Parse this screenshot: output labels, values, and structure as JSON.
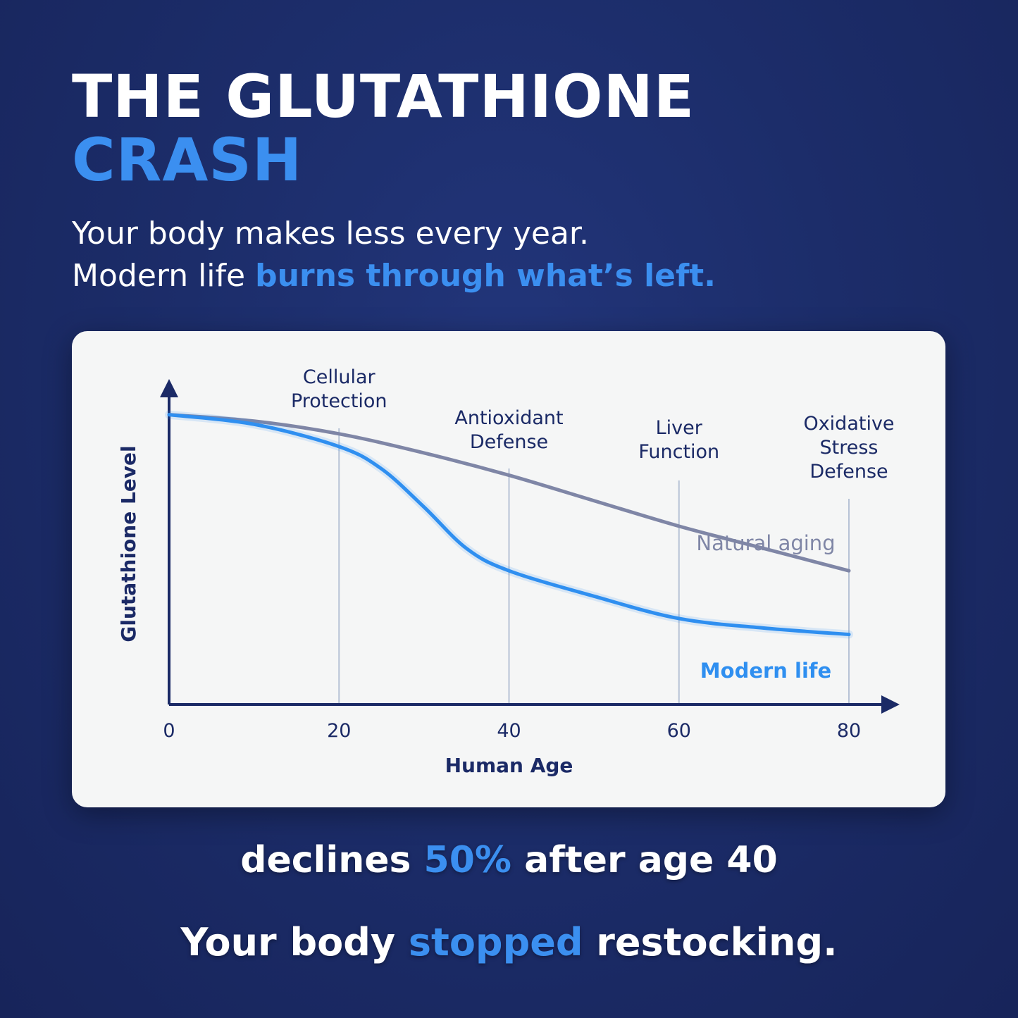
{
  "header": {
    "title_line1": "THE GLUTATHIONE",
    "title_line2": "CRASH",
    "subtitle_line1": "Your body makes less every year.",
    "subtitle_line2_plain": "Modern life ",
    "subtitle_line2_accent": "burns through what’s left."
  },
  "colors": {
    "accent": "#3b8ff0",
    "natural_aging_line": "#7f86a6",
    "modern_life_line": "#2f8ff0",
    "axis": "#1b2a66",
    "marker_line": "#b7c3d6"
  },
  "chart_data": {
    "type": "line",
    "xlabel": "Human Age",
    "ylabel": "Glutathione Level",
    "xlim": [
      0,
      80
    ],
    "ylim": [
      0,
      100
    ],
    "x_ticks": [
      "0",
      "20",
      "40",
      "60",
      "80"
    ],
    "grid": false,
    "series": [
      {
        "name": "Natural aging",
        "x": [
          0,
          10,
          20,
          30,
          40,
          50,
          60,
          70,
          80
        ],
        "values": [
          91,
          89,
          85,
          79,
          72,
          64,
          56,
          49,
          42
        ]
      },
      {
        "name": "Modern life",
        "x": [
          0,
          10,
          20,
          25,
          30,
          35,
          40,
          50,
          60,
          70,
          80
        ],
        "values": [
          91,
          88,
          81,
          74,
          62,
          49,
          42,
          34,
          27,
          24,
          22
        ]
      }
    ],
    "annotations": [
      {
        "x": 20,
        "label_lines": [
          "Cellular",
          "Protection"
        ]
      },
      {
        "x": 40,
        "label_lines": [
          "Antioxidant",
          "Defense"
        ]
      },
      {
        "x": 60,
        "label_lines": [
          "Liver",
          "Function"
        ]
      },
      {
        "x": 80,
        "label_lines": [
          "Oxidative",
          "Stress",
          "Defense"
        ]
      }
    ]
  },
  "footer": {
    "stat_pre": "declines ",
    "stat_value": "50%",
    "stat_post": " after age 40",
    "tagline_pre": "Your body ",
    "tagline_accent": "stopped",
    "tagline_post": " restocking."
  }
}
